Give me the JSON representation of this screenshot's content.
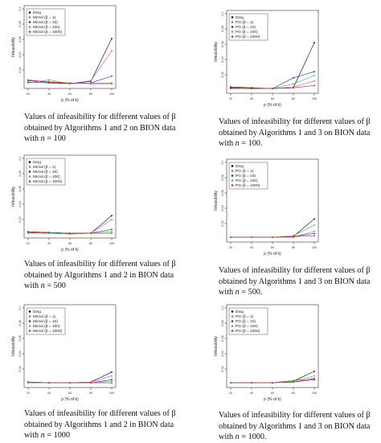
{
  "colors": {
    "Ding": "#000000",
    "beta1": "#e040e0",
    "beta10": "#2222cc",
    "beta100": "#33cc33",
    "beta1000": "#dd2222"
  },
  "captions": [
    {
      "pre": "Values of infeasibility for different values of β obtained by Algorithms 1 and 2 on BION data with ",
      "var": "n",
      "post": " = 100"
    },
    {
      "pre": "Values of infeasibility for different values of β obtained by Algorithms 1 and 3 on BION data with ",
      "var": "n",
      "post": " = 100."
    },
    {
      "pre": "Values of infeasibility for different values of β obtained by Algorithms 1 and 2 in BION data with ",
      "var": "n",
      "post": " = 500"
    },
    {
      "pre": "Values of infeasibility for different values of β obtained by Algorithms 1 and 3 on BION data with ",
      "var": "n",
      "post": " = 500."
    },
    {
      "pre": "Values of infeasibility for different values of β obtained by Algorithms 1 and 2 in BION data with ",
      "var": "n",
      "post": " = 1000"
    },
    {
      "pre": "Values of infeasibility for different values of β obtained by Algorithms 1 and 3 on BION data with ",
      "var": "n",
      "post": " = 1000."
    }
  ],
  "chart_data": [
    {
      "type": "line",
      "xlabel": "p (% of k)",
      "ylabel": "Infeasibility",
      "x": [
        20,
        40,
        60,
        80,
        100
      ],
      "xticks": [
        "20",
        "40",
        "60",
        "80",
        "100"
      ],
      "ylim": [
        0,
        0.1
      ],
      "yticks": [
        "0.02",
        "0.04",
        "0.06",
        "0.08",
        "0.1"
      ],
      "legend_position": "top-left",
      "series": [
        {
          "name": "Ding",
          "color_key": "Ding",
          "values": [
            0.006,
            0.004,
            0.002,
            0.005,
            0.061
          ]
        },
        {
          "name": "Mirzal (β = 1)",
          "color_key": "beta1",
          "values": [
            0.006,
            0.005,
            0.002,
            0.006,
            0.045
          ]
        },
        {
          "name": "Mirzal (β = 10)",
          "color_key": "beta10",
          "values": [
            0.004,
            0.003,
            0.002,
            0.003,
            0.012
          ]
        },
        {
          "name": "Mirzal (β = 100)",
          "color_key": "beta100",
          "values": [
            0.003,
            0.007,
            0.002,
            0.003,
            0.003
          ]
        },
        {
          "name": "Mirzal (β = 1000)",
          "color_key": "beta1000",
          "values": [
            0.007,
            0.004,
            0.003,
            0.002,
            0.002
          ]
        }
      ]
    },
    {
      "type": "line",
      "xlabel": "p (% of k)",
      "ylabel": "Infeasibility",
      "x": [
        20,
        40,
        60,
        80,
        100
      ],
      "xticks": [
        "20",
        "40",
        "60",
        "80",
        "100"
      ],
      "ylim": [
        0,
        0.1
      ],
      "yticks": [
        "0.02",
        "0.04",
        "0.06",
        "0.08",
        "0.1"
      ],
      "legend_position": "top-left",
      "series": [
        {
          "name": "Ding",
          "color_key": "Ding",
          "values": [
            0.004,
            0.003,
            0.002,
            0.003,
            0.062
          ]
        },
        {
          "name": "PG (β = 1)",
          "color_key": "beta1",
          "values": [
            0.003,
            0.002,
            0.002,
            0.004,
            0.012
          ]
        },
        {
          "name": "PG (β = 10)",
          "color_key": "beta10",
          "values": [
            0.003,
            0.002,
            0.002,
            0.016,
            0.024
          ]
        },
        {
          "name": "PG (β = 100)",
          "color_key": "beta100",
          "values": [
            0.002,
            0.002,
            0.002,
            0.008,
            0.019
          ]
        },
        {
          "name": "PG (β = 1000)",
          "color_key": "beta1000",
          "values": [
            0.002,
            0.002,
            0.002,
            0.003,
            0.006
          ]
        }
      ]
    },
    {
      "type": "line",
      "xlabel": "p (% of k)",
      "ylabel": "Infeasibility",
      "x": [
        20,
        40,
        60,
        80,
        100
      ],
      "xticks": [
        "20",
        "40",
        "60",
        "80",
        "100"
      ],
      "ylim": [
        0,
        0.1
      ],
      "yticks": [
        "0.02",
        "0.04",
        "0.06",
        "0.08",
        "0.1"
      ],
      "legend_position": "top-left",
      "series": [
        {
          "name": "Ding",
          "color_key": "Ding",
          "values": [
            0.004,
            0.003,
            0.002,
            0.002,
            0.025
          ]
        },
        {
          "name": "Mirzal (β = 1)",
          "color_key": "beta1",
          "values": [
            0.003,
            0.002,
            0.002,
            0.002,
            0.02
          ]
        },
        {
          "name": "Mirzal (β = 10)",
          "color_key": "beta10",
          "values": [
            0.003,
            0.002,
            0.001,
            0.002,
            0.007
          ]
        },
        {
          "name": "Mirzal (β = 100)",
          "color_key": "beta100",
          "values": [
            0.002,
            0.002,
            0.001,
            0.002,
            0.004
          ]
        },
        {
          "name": "Mirzal (β = 1000)",
          "color_key": "beta1000",
          "values": [
            0.004,
            0.003,
            0.002,
            0.002,
            0.002
          ]
        }
      ]
    },
    {
      "type": "line",
      "xlabel": "p (% of k)",
      "ylabel": "Infeasibility",
      "x": [
        20,
        40,
        60,
        80,
        100
      ],
      "xticks": [
        "20",
        "40",
        "60",
        "80",
        "100"
      ],
      "ylim": [
        0,
        0.1
      ],
      "yticks": [
        "0.02",
        "0.04",
        "0.06",
        "0.08",
        "0.1"
      ],
      "legend_position": "top-left",
      "series": [
        {
          "name": "Ding",
          "color_key": "Ding",
          "values": [
            0.002,
            0.002,
            0.002,
            0.003,
            0.026
          ]
        },
        {
          "name": "PG (β = 1)",
          "color_key": "beta1",
          "values": [
            0.002,
            0.002,
            0.002,
            0.002,
            0.01
          ]
        },
        {
          "name": "PG (β = 10)",
          "color_key": "beta10",
          "values": [
            0.002,
            0.002,
            0.002,
            0.003,
            0.007
          ]
        },
        {
          "name": "PG (β = 100)",
          "color_key": "beta100",
          "values": [
            0.002,
            0.002,
            0.002,
            0.004,
            0.018
          ]
        },
        {
          "name": "PG (β = 1000)",
          "color_key": "beta1000",
          "values": [
            0.002,
            0.002,
            0.002,
            0.003,
            0.004
          ]
        }
      ]
    },
    {
      "type": "line",
      "xlabel": "p (% of k)",
      "ylabel": "Infeasibility",
      "x": [
        20,
        40,
        60,
        80,
        100
      ],
      "xticks": [
        "20",
        "40",
        "60",
        "80",
        "100"
      ],
      "ylim": [
        0,
        0.1
      ],
      "yticks": [
        "0.02",
        "0.04",
        "0.06",
        "0.08",
        "0.1"
      ],
      "legend_position": "top-left",
      "series": [
        {
          "name": "Ding",
          "color_key": "Ding",
          "values": [
            0.003,
            0.002,
            0.002,
            0.003,
            0.016
          ]
        },
        {
          "name": "Mirzal (β = 1)",
          "color_key": "beta1",
          "values": [
            0.003,
            0.002,
            0.002,
            0.003,
            0.011
          ]
        },
        {
          "name": "Mirzal (β = 10)",
          "color_key": "beta10",
          "values": [
            0.002,
            0.002,
            0.002,
            0.002,
            0.006
          ]
        },
        {
          "name": "Mirzal (β = 100)",
          "color_key": "beta100",
          "values": [
            0.002,
            0.002,
            0.002,
            0.002,
            0.004
          ]
        },
        {
          "name": "Mirzal (β = 1000)",
          "color_key": "beta1000",
          "values": [
            0.003,
            0.002,
            0.002,
            0.002,
            0.002
          ]
        }
      ]
    },
    {
      "type": "line",
      "xlabel": "p (% of k)",
      "ylabel": "Infeasibility",
      "x": [
        20,
        40,
        60,
        80,
        100
      ],
      "xticks": [
        "20",
        "40",
        "60",
        "80",
        "100"
      ],
      "ylim": [
        0,
        0.1
      ],
      "yticks": [
        "0.02",
        "0.04",
        "0.06",
        "0.08",
        "0.1"
      ],
      "legend_position": "top-left",
      "series": [
        {
          "name": "Ding",
          "color_key": "Ding",
          "values": [
            0.002,
            0.002,
            0.002,
            0.004,
            0.017
          ]
        },
        {
          "name": "PG (β = 1)",
          "color_key": "beta1",
          "values": [
            0.002,
            0.002,
            0.002,
            0.003,
            0.008
          ]
        },
        {
          "name": "PG (β = 10)",
          "color_key": "beta10",
          "values": [
            0.002,
            0.002,
            0.002,
            0.003,
            0.006
          ]
        },
        {
          "name": "PG (β = 100)",
          "color_key": "beta100",
          "values": [
            0.002,
            0.002,
            0.002,
            0.004,
            0.011
          ]
        },
        {
          "name": "PG (β = 1000)",
          "color_key": "beta1000",
          "values": [
            0.002,
            0.002,
            0.002,
            0.005,
            0.007
          ]
        }
      ]
    }
  ]
}
